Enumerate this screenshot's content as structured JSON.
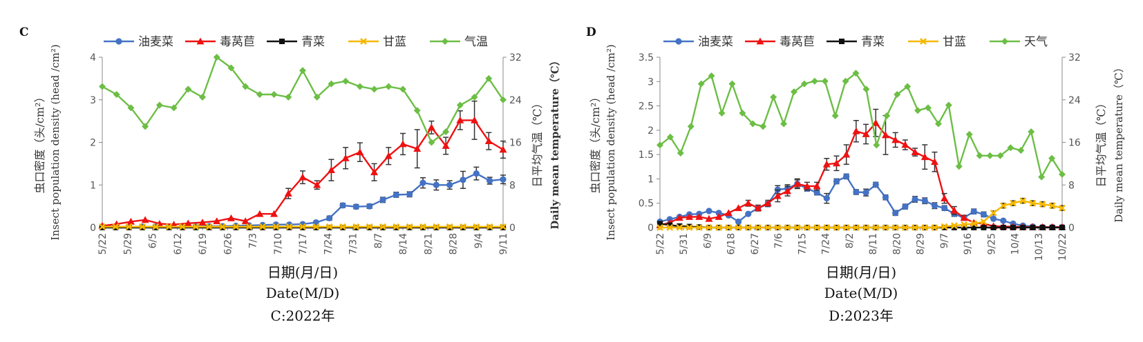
{
  "chart_data": [
    {
      "type": "line",
      "panel_label": "C",
      "legend": [
        "油麦菜",
        "毒莴苣",
        "青菜",
        "甘蓝",
        "气温"
      ],
      "ylabel_left": [
        "虫口密度（头/cm²）",
        "Insect population density (head /cm²)"
      ],
      "ylabel_right": [
        "日平均气温（℃）",
        "Daily mean temperature（℃）"
      ],
      "ylim_left": [
        0,
        4
      ],
      "left_ticks": [
        "0",
        "1",
        "2",
        "3",
        "4"
      ],
      "ylim_right": [
        0,
        32
      ],
      "right_ticks": [
        "0",
        "8",
        "16",
        "24",
        "32"
      ],
      "caption": [
        "日期(月/日)",
        "Date(M/D)",
        "C:2022年"
      ],
      "x_ticks": [
        "5/22",
        "5/29",
        "6/5",
        "6/12",
        "6/19",
        "6/26",
        "7/3",
        "7/10",
        "7/17",
        "7/24",
        "7/31",
        "8/7",
        "8/14",
        "8/21",
        "8/28",
        "9/4",
        "9/11"
      ],
      "tick_interval": 2,
      "n_points": 33,
      "series": [
        {
          "name": "油麦菜",
          "color": "#4472c4",
          "marker": "circle",
          "axis": "left",
          "values": [
            0.02,
            0.02,
            0.02,
            0.02,
            0.02,
            0.02,
            0.02,
            0.02,
            0.03,
            0.03,
            0.04,
            0.05,
            0.06,
            0.07,
            0.07,
            0.08,
            0.12,
            0.22,
            0.52,
            0.49,
            0.5,
            0.65,
            0.77,
            0.78,
            1.05,
            1.0,
            1.0,
            1.12,
            1.27,
            1.1,
            1.13
          ],
          "errors": [
            0,
            0,
            0,
            0,
            0,
            0,
            0,
            0,
            0,
            0,
            0,
            0,
            0,
            0,
            0,
            0,
            0,
            0.05,
            0.05,
            0.05,
            0.05,
            0.06,
            0.06,
            0.06,
            0.12,
            0.12,
            0.1,
            0.2,
            0.15,
            0.08,
            0.1
          ]
        },
        {
          "name": "毒莴苣",
          "color": "#ee1111",
          "marker": "triangle",
          "axis": "left",
          "values": [
            0.04,
            0.08,
            0.14,
            0.18,
            0.09,
            0.07,
            0.1,
            0.12,
            0.15,
            0.22,
            0.15,
            0.32,
            0.32,
            0.8,
            1.18,
            1.0,
            1.35,
            1.63,
            1.77,
            1.3,
            1.68,
            1.96,
            1.85,
            2.35,
            1.92,
            2.52,
            2.52,
            2.03,
            1.83
          ],
          "errors": [
            0,
            0,
            0,
            0,
            0,
            0,
            0,
            0,
            0,
            0,
            0,
            0,
            0,
            0.12,
            0.15,
            0.1,
            0.25,
            0.25,
            0.22,
            0.2,
            0.2,
            0.25,
            0.45,
            0.15,
            0.2,
            0.22,
            0.45,
            0.2,
            0.2
          ]
        },
        {
          "name": "青菜",
          "color": "#111111",
          "marker": "square",
          "axis": "left",
          "values": [
            0,
            0,
            0,
            0,
            0,
            0,
            0,
            0,
            0,
            0,
            0,
            0,
            0,
            0,
            0,
            0,
            0,
            0,
            0,
            0,
            0,
            0,
            0,
            0,
            0,
            0,
            0,
            0,
            0,
            0,
            0
          ]
        },
        {
          "name": "甘蓝",
          "color": "#f5b800",
          "marker": "cross",
          "axis": "left",
          "values": [
            0.02,
            0.02,
            0.02,
            0.02,
            0.02,
            0.02,
            0.02,
            0.02,
            0.02,
            0.02,
            0.02,
            0.02,
            0.02,
            0.02,
            0.02,
            0.02,
            0.02,
            0.02,
            0.02,
            0.02,
            0.02,
            0.02,
            0.02,
            0.02,
            0.02,
            0.02,
            0.02,
            0.02,
            0.02,
            0.02,
            0.02
          ]
        },
        {
          "name": "气温",
          "color": "#6cbe45",
          "marker": "diamond",
          "axis": "right",
          "values": [
            26.5,
            25,
            22.5,
            19,
            23,
            22.5,
            26,
            24.5,
            32,
            30,
            26.5,
            25,
            25,
            24.5,
            29.5,
            24.5,
            27,
            27.5,
            26.5,
            26,
            26.5,
            26,
            22,
            16,
            18,
            23,
            24.5,
            28,
            24
          ]
        }
      ]
    },
    {
      "type": "line",
      "panel_label": "D",
      "legend": [
        "油麦菜",
        "毒莴苣",
        "青菜",
        "甘蓝",
        "天气"
      ],
      "ylabel_left": [
        "虫口密度（头/cm²）",
        "Insect population density (head /cm²)"
      ],
      "ylabel_right": [
        "日平均气温（℃）",
        "Daily mean temperature（℃）"
      ],
      "ylim_left": [
        0,
        3.5
      ],
      "left_ticks": [
        "0",
        "0.5",
        "1",
        "1.5",
        "2",
        "2.5",
        "3",
        "3.5"
      ],
      "ylim_right": [
        0,
        32
      ],
      "right_ticks": [
        "0",
        "8",
        "16",
        "24",
        "32"
      ],
      "caption": [
        "日期(月/日)",
        "Date(M/D)",
        "D:2023年"
      ],
      "x_ticks": [
        "5/22",
        "5/31",
        "6/9",
        "6/18",
        "6/27",
        "7/6",
        "7/15",
        "7/24",
        "8/2",
        "8/11",
        "8/20",
        "8/29",
        "9/7",
        "9/16",
        "9/25",
        "10/4",
        "10/13",
        "10/22"
      ],
      "tick_interval": 3,
      "n_points": 52,
      "series": [
        {
          "name": "油麦菜",
          "color": "#4472c4",
          "marker": "circle",
          "axis": "left",
          "values": [
            0.12,
            0.17,
            0.22,
            0.27,
            0.28,
            0.34,
            0.3,
            0.25,
            0.12,
            0.28,
            0.4,
            0.48,
            0.78,
            0.8,
            0.9,
            0.8,
            0.72,
            0.6,
            0.95,
            1.05,
            0.73,
            0.72,
            0.88,
            0.62,
            0.3,
            0.43,
            0.58,
            0.55,
            0.45,
            0.4,
            0.28,
            0.2,
            0.33,
            0.27,
            0.18,
            0.14,
            0.08,
            0.04,
            0.02,
            0.01,
            0.01,
            0.01
          ],
          "errors": [
            0,
            0,
            0,
            0,
            0,
            0,
            0,
            0,
            0,
            0,
            0,
            0.05,
            0.08,
            0.08,
            0.08,
            0.05,
            0.05,
            0.1,
            0.05,
            0.05,
            0.05,
            0.07,
            0.05,
            0.05,
            0.05,
            0.05,
            0.06,
            0.06,
            0.06,
            0.05,
            0.05,
            0.05,
            0.05,
            0.05,
            0,
            0,
            0,
            0,
            0,
            0,
            0,
            0
          ]
        },
        {
          "name": "毒莴苣",
          "color": "#ee1111",
          "marker": "triangle",
          "axis": "left",
          "values": [
            0.05,
            0.1,
            0.2,
            0.22,
            0.22,
            0.18,
            0.22,
            0.3,
            0.4,
            0.5,
            0.4,
            0.5,
            0.65,
            0.75,
            0.9,
            0.85,
            0.85,
            1.3,
            1.32,
            1.5,
            1.98,
            1.92,
            2.15,
            1.9,
            1.8,
            1.7,
            1.55,
            1.45,
            1.35,
            0.6,
            0.35,
            0.2,
            0.1,
            0.08,
            0.03,
            0.02,
            0.02,
            0.01,
            0.01,
            0.01,
            0.01,
            0.01
          ],
          "errors": [
            0,
            0,
            0,
            0,
            0,
            0,
            0,
            0,
            0,
            0.06,
            0.06,
            0.06,
            0.12,
            0.1,
            0.1,
            0.08,
            0.08,
            0.12,
            0.15,
            0.2,
            0.22,
            0.2,
            0.28,
            0.4,
            0.15,
            0.1,
            0.08,
            0.25,
            0.2,
            0.1,
            0.08,
            0.05,
            0,
            0,
            0,
            0,
            0,
            0,
            0,
            0,
            0,
            0
          ]
        },
        {
          "name": "青菜",
          "color": "#111111",
          "marker": "square",
          "axis": "left",
          "values": [
            0.08,
            0.05,
            0.03,
            0.02,
            0.01,
            0,
            0,
            0,
            0,
            0,
            0,
            0,
            0,
            0,
            0,
            0,
            0,
            0,
            0,
            0,
            0,
            0,
            0,
            0,
            0,
            0,
            0,
            0,
            0,
            0,
            0,
            0,
            0,
            0,
            0,
            0,
            0,
            0,
            0,
            0,
            0,
            0
          ]
        },
        {
          "name": "甘蓝",
          "color": "#f5b800",
          "marker": "cross",
          "axis": "left",
          "values": [
            0,
            0,
            0,
            0,
            0,
            0,
            0,
            0,
            0,
            0,
            0,
            0,
            0,
            0,
            0,
            0,
            0,
            0,
            0,
            0,
            0,
            0,
            0,
            0,
            0,
            0,
            0,
            0,
            0,
            0.02,
            0.04,
            0.06,
            0.08,
            0.12,
            0.3,
            0.45,
            0.5,
            0.55,
            0.5,
            0.48,
            0.45,
            0.4
          ],
          "errors": [
            0,
            0,
            0,
            0,
            0,
            0,
            0,
            0,
            0,
            0,
            0,
            0,
            0,
            0,
            0,
            0,
            0,
            0,
            0,
            0,
            0,
            0,
            0,
            0,
            0,
            0,
            0,
            0,
            0,
            0,
            0,
            0,
            0,
            0,
            0.04,
            0.05,
            0.05,
            0.05,
            0.05,
            0.05,
            0.05,
            0.05
          ]
        },
        {
          "name": "天气",
          "color": "#6cbe45",
          "marker": "diamond",
          "axis": "right",
          "values": [
            15.5,
            17,
            14,
            19,
            27,
            28.5,
            21.5,
            27,
            21.5,
            19.5,
            19,
            24.5,
            19.5,
            25.5,
            27,
            27.5,
            27.5,
            21,
            27.5,
            29,
            26,
            15.5,
            21,
            25,
            26.5,
            22,
            22.5,
            19.5,
            23,
            11.5,
            17.5,
            13.5,
            13.5,
            13.5,
            15,
            14.5,
            18,
            9.5,
            13,
            10
          ]
        }
      ]
    }
  ]
}
